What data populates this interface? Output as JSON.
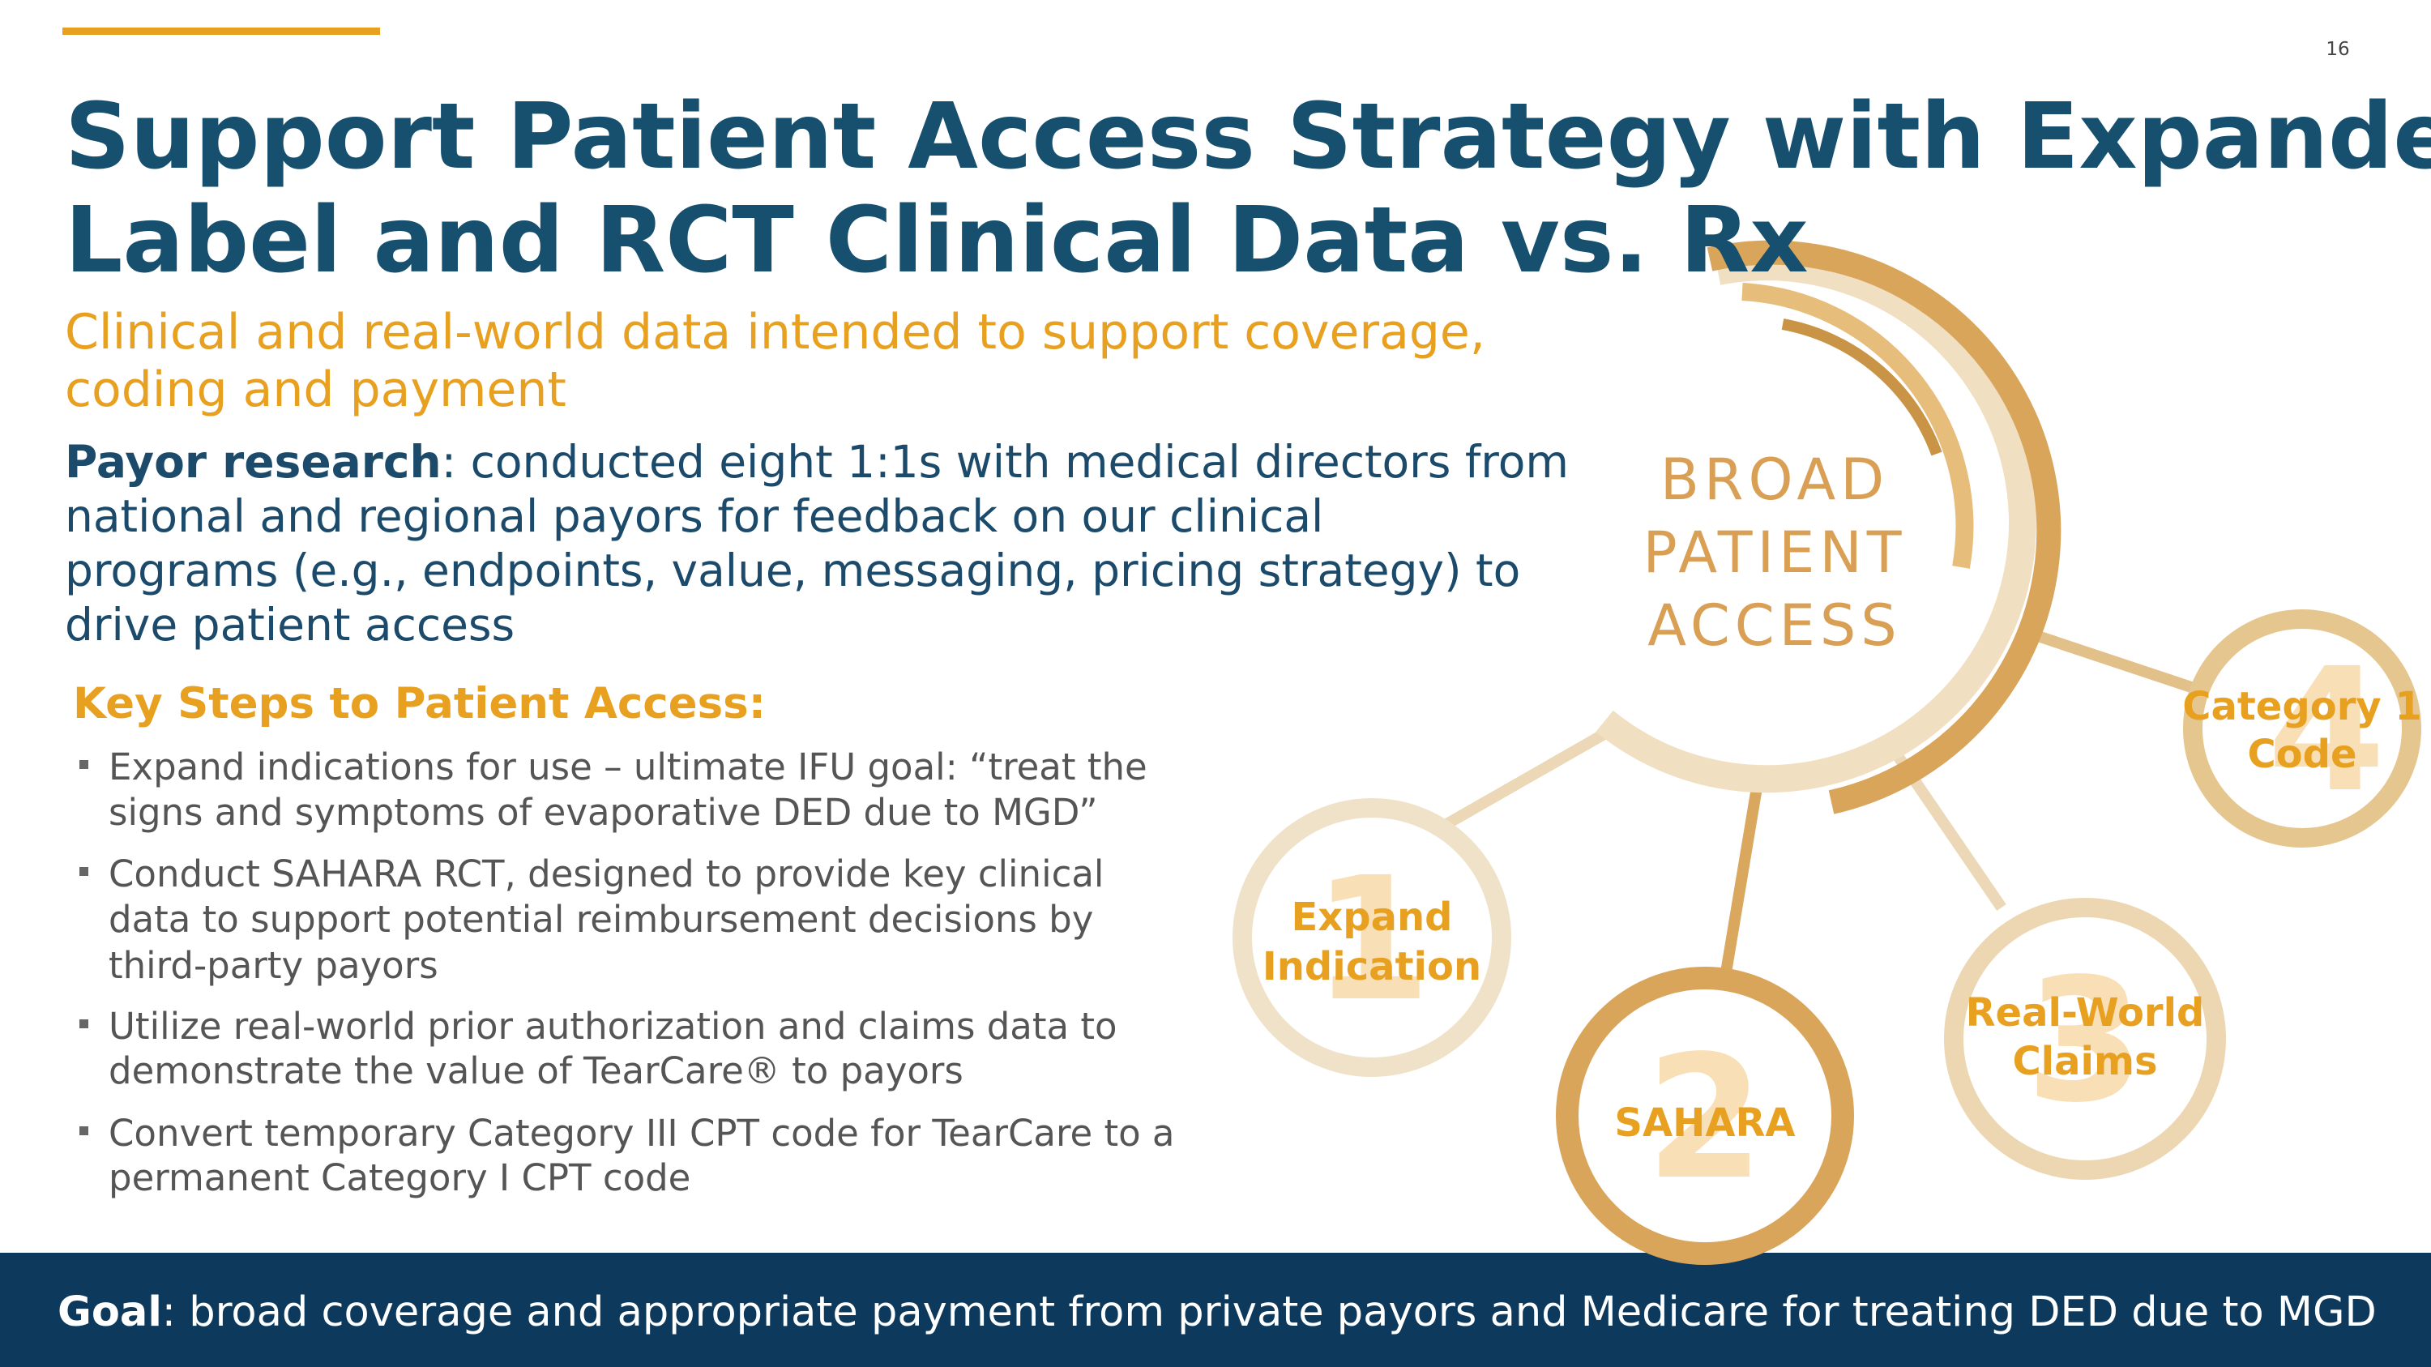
{
  "page_number": "16",
  "title": {
    "lines": [
      "Support Patient Access Strategy with Expanded",
      "Label and RCT Clinical Data vs. Rx"
    ]
  },
  "subtitle": {
    "lines": [
      "Clinical and real-world data intended to support coverage,",
      "coding and payment"
    ]
  },
  "payor": {
    "label": "Payor research",
    "lines": [
      ": conducted eight 1:1s with medical directors from",
      "national and regional payors for feedback on our clinical",
      "programs (e.g., endpoints, value, messaging, pricing strategy) to",
      "drive patient access"
    ]
  },
  "key_steps": {
    "heading": "Key Steps to Patient Access:",
    "bullets": [
      {
        "lines": [
          "Expand indications for use – ultimate IFU goal: “treat the",
          "signs and symptoms of evaporative DED due to MGD”"
        ]
      },
      {
        "lines": [
          "Conduct SAHARA RCT, designed to provide key clinical",
          "data to support potential reimbursement decisions by",
          "third-party payors"
        ]
      },
      {
        "lines": [
          "Utilize real-world prior authorization and claims data to",
          "demonstrate the value of TearCare® to payors"
        ]
      },
      {
        "lines": [
          "Convert temporary Category III CPT code for TearCare to a",
          "permanent Category I CPT code"
        ]
      }
    ]
  },
  "diagram": {
    "center_lines": [
      "BROAD",
      "PATIENT",
      "ACCESS"
    ],
    "steps": [
      {
        "number": 1,
        "label_lines": [
          "Expand",
          "Indication"
        ]
      },
      {
        "number": 2,
        "label_lines": [
          "SAHARA"
        ]
      },
      {
        "number": 3,
        "label_lines": [
          "Real-World",
          "Claims"
        ]
      },
      {
        "number": 4,
        "label_lines": [
          "Category 1",
          "Code"
        ]
      }
    ]
  },
  "goal": {
    "label": "Goal",
    "text": ": broad coverage and appropriate payment from private payors and Medicare for treating DED due to MGD"
  }
}
